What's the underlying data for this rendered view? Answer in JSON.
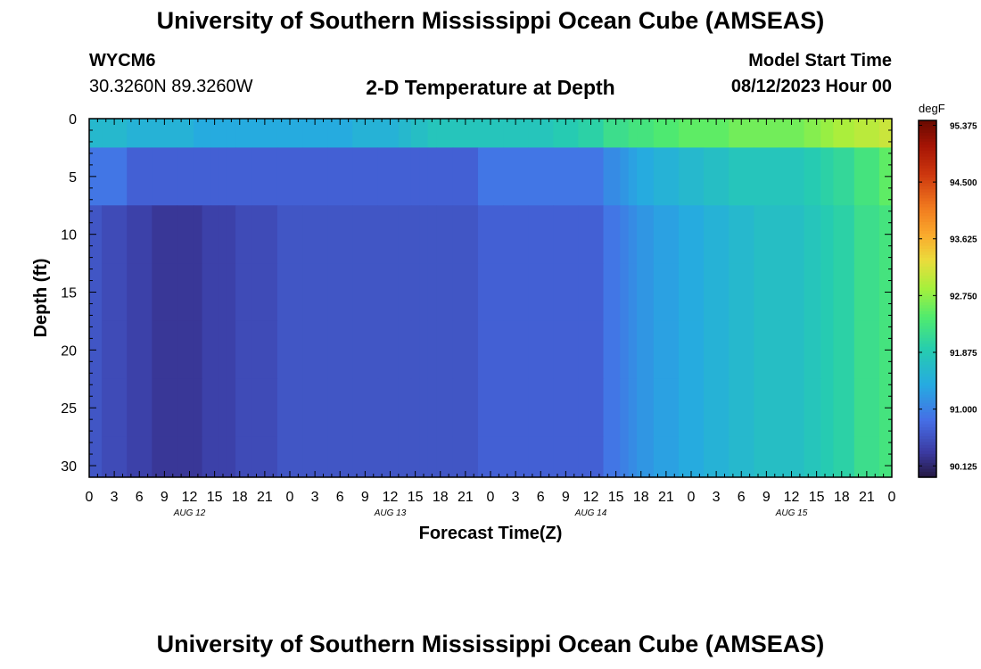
{
  "header": {
    "title": "University of Southern Mississippi Ocean Cube (AMSEAS)",
    "station": "WYCM6",
    "coords": "30.3260N  89.3260W",
    "plot_title": "2-D Temperature at Depth",
    "model_start_label": "Model Start Time",
    "model_start_value": "08/12/2023 Hour 00"
  },
  "footer": {
    "title": "University of Southern Mississippi Ocean Cube (AMSEAS)"
  },
  "chart_data": {
    "type": "heatmap",
    "title": "2-D Temperature at Depth",
    "xlabel": "Forecast Time(Z)",
    "ylabel": "Depth (ft)",
    "x_tick_labels": [
      "0",
      "3",
      "6",
      "9",
      "12",
      "15",
      "18",
      "21",
      "0",
      "3",
      "6",
      "9",
      "12",
      "15",
      "18",
      "21",
      "0",
      "3",
      "6",
      "9",
      "12",
      "15",
      "18",
      "21",
      "0",
      "3",
      "6",
      "9",
      "12",
      "15",
      "18",
      "21",
      "0"
    ],
    "date_labels": [
      {
        "label": "AUG 12",
        "hour": 12
      },
      {
        "label": "AUG 13",
        "hour": 36
      },
      {
        "label": "AUG 14",
        "hour": 60
      },
      {
        "label": "AUG 15",
        "hour": 84
      }
    ],
    "xlim_hours": [
      0,
      96
    ],
    "ylim_ft": [
      0,
      31
    ],
    "y_ticks": [
      0,
      5,
      10,
      15,
      20,
      25,
      30
    ],
    "colorbar": {
      "units": "degF",
      "vmin": 89.95,
      "vmax": 95.45,
      "ticks": [
        "95.375",
        "94.500",
        "93.625",
        "92.750",
        "91.875",
        "91.000",
        "90.125"
      ],
      "tick_values": [
        95.375,
        94.5,
        93.625,
        92.75,
        91.875,
        91.0,
        90.125
      ]
    },
    "depths_ft": [
      0,
      5,
      10,
      15,
      20,
      25,
      30
    ],
    "time_hours": [
      0,
      3,
      6,
      9,
      12,
      13,
      14,
      15,
      16,
      17,
      18,
      21,
      24,
      27,
      30,
      33,
      36,
      38,
      39,
      40,
      41,
      42,
      45,
      48,
      51,
      54,
      57,
      60,
      63,
      64,
      65,
      66,
      69,
      72,
      75,
      78,
      81,
      84,
      87,
      88,
      90,
      93,
      96
    ],
    "values_degF": [
      [
        91.6,
        91.6,
        91.5,
        91.5,
        91.5,
        91.4,
        91.4,
        91.4,
        91.4,
        91.4,
        91.4,
        91.4,
        91.4,
        91.4,
        91.4,
        91.5,
        91.5,
        91.6,
        91.7,
        91.7,
        91.8,
        91.8,
        91.8,
        91.8,
        91.8,
        91.8,
        91.9,
        92.0,
        92.2,
        92.2,
        92.3,
        92.3,
        92.4,
        92.5,
        92.5,
        92.6,
        92.6,
        92.6,
        92.7,
        92.8,
        92.9,
        93.0,
        93.1
      ],
      [
        90.9,
        90.9,
        90.7,
        90.7,
        90.7,
        90.7,
        90.7,
        90.7,
        90.7,
        90.7,
        90.7,
        90.7,
        90.7,
        90.7,
        90.7,
        90.7,
        90.7,
        90.7,
        90.7,
        90.7,
        90.7,
        90.7,
        90.7,
        90.9,
        90.9,
        90.9,
        90.9,
        90.9,
        91.1,
        91.2,
        91.3,
        91.4,
        91.5,
        91.6,
        91.7,
        91.8,
        91.8,
        91.8,
        91.9,
        92.0,
        92.1,
        92.3,
        92.5
      ],
      [
        90.6,
        90.5,
        90.4,
        90.3,
        90.3,
        90.3,
        90.4,
        90.4,
        90.4,
        90.4,
        90.5,
        90.5,
        90.6,
        90.6,
        90.6,
        90.6,
        90.6,
        90.6,
        90.6,
        90.6,
        90.6,
        90.6,
        90.6,
        90.7,
        90.7,
        90.7,
        90.7,
        90.7,
        90.9,
        91.0,
        91.1,
        91.2,
        91.3,
        91.4,
        91.5,
        91.6,
        91.7,
        91.7,
        91.8,
        91.9,
        92.0,
        92.2,
        92.3
      ],
      [
        90.6,
        90.5,
        90.4,
        90.3,
        90.3,
        90.3,
        90.4,
        90.4,
        90.4,
        90.4,
        90.5,
        90.5,
        90.6,
        90.6,
        90.6,
        90.6,
        90.6,
        90.6,
        90.6,
        90.6,
        90.6,
        90.6,
        90.6,
        90.7,
        90.7,
        90.7,
        90.7,
        90.7,
        90.9,
        91.0,
        91.1,
        91.2,
        91.3,
        91.4,
        91.5,
        91.6,
        91.7,
        91.7,
        91.8,
        91.9,
        92.0,
        92.2,
        92.3
      ],
      [
        90.6,
        90.5,
        90.4,
        90.3,
        90.3,
        90.3,
        90.4,
        90.4,
        90.4,
        90.4,
        90.5,
        90.5,
        90.6,
        90.6,
        90.6,
        90.6,
        90.6,
        90.6,
        90.6,
        90.6,
        90.6,
        90.6,
        90.6,
        90.7,
        90.7,
        90.7,
        90.7,
        90.7,
        90.9,
        91.0,
        91.1,
        91.2,
        91.3,
        91.4,
        91.5,
        91.6,
        91.7,
        91.7,
        91.8,
        91.9,
        92.0,
        92.2,
        92.3
      ],
      [
        90.6,
        90.5,
        90.4,
        90.3,
        90.3,
        90.3,
        90.4,
        90.4,
        90.4,
        90.4,
        90.5,
        90.5,
        90.6,
        90.6,
        90.6,
        90.6,
        90.6,
        90.6,
        90.6,
        90.6,
        90.6,
        90.6,
        90.6,
        90.7,
        90.7,
        90.7,
        90.7,
        90.7,
        90.9,
        91.0,
        91.1,
        91.2,
        91.3,
        91.4,
        91.5,
        91.6,
        91.7,
        91.7,
        91.8,
        91.9,
        92.0,
        92.2,
        92.3
      ],
      [
        90.6,
        90.5,
        90.4,
        90.3,
        90.3,
        90.3,
        90.4,
        90.4,
        90.4,
        90.4,
        90.5,
        90.5,
        90.6,
        90.6,
        90.6,
        90.6,
        90.6,
        90.6,
        90.6,
        90.6,
        90.6,
        90.6,
        90.6,
        90.7,
        90.7,
        90.7,
        90.7,
        90.7,
        90.9,
        91.0,
        91.1,
        91.2,
        91.3,
        91.4,
        91.5,
        91.6,
        91.7,
        91.7,
        91.8,
        91.9,
        92.0,
        92.2,
        92.3
      ]
    ]
  }
}
